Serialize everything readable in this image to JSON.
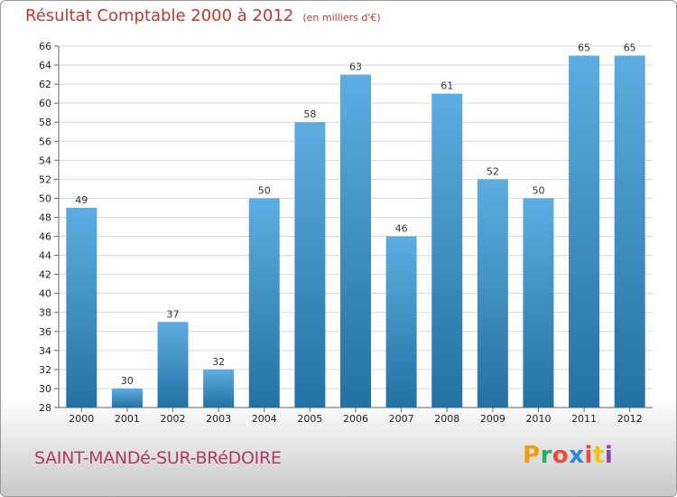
{
  "header": {
    "title": "Résultat Comptable 2000 à 2012",
    "unit": "(en milliers d'€)"
  },
  "footer": {
    "commune": "SAINT-MANDé-SUR-BRéDOIRE",
    "brand": {
      "letters": [
        "P",
        "r",
        "o",
        "x",
        "i",
        "t",
        "i"
      ],
      "colors": [
        "#f39c12",
        "#27ae60",
        "#e74c3c",
        "#2e86de",
        "#e74c3c",
        "#f1c40f",
        "#8e44ad"
      ]
    }
  },
  "colors": {
    "bar_light": "#5dade2",
    "bar_dark": "#2471a3",
    "title": "#c0392b",
    "commune": "#b03a64"
  },
  "chart_data": {
    "type": "bar",
    "categories": [
      "2000",
      "2001",
      "2002",
      "2003",
      "2004",
      "2005",
      "2006",
      "2007",
      "2008",
      "2009",
      "2010",
      "2011",
      "2012"
    ],
    "values": [
      49,
      30,
      37,
      32,
      50,
      58,
      63,
      46,
      61,
      52,
      50,
      65,
      65
    ],
    "data_labels": [
      "49",
      "30",
      "37",
      "32",
      "50",
      "58",
      "63",
      "46",
      "61",
      "52",
      "50",
      "65",
      "65"
    ],
    "ylim": [
      28,
      66
    ],
    "yticks": [
      "28",
      "30",
      "32",
      "34",
      "36",
      "38",
      "40",
      "42",
      "44",
      "46",
      "48",
      "50",
      "52",
      "54",
      "56",
      "58",
      "60",
      "62",
      "64",
      "66"
    ],
    "grid": true
  }
}
